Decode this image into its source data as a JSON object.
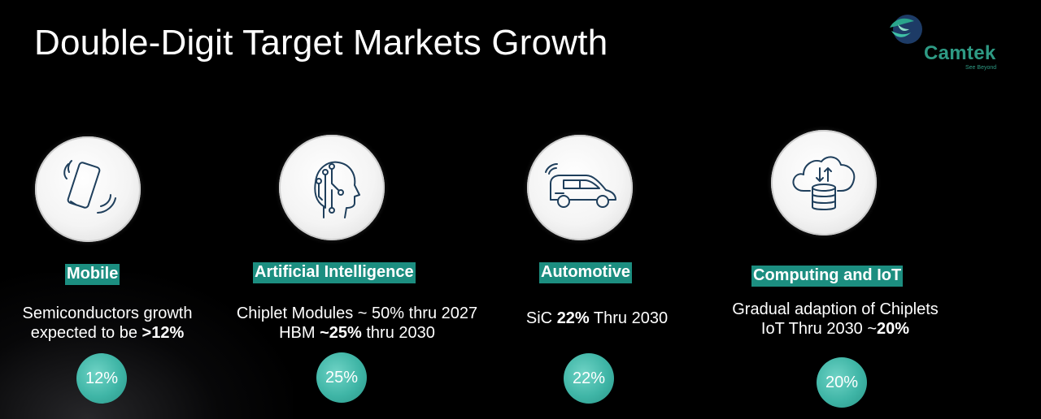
{
  "title": "Double-Digit Target Markets Growth",
  "logo": {
    "name": "Camtek",
    "tagline": "See Beyond"
  },
  "colors": {
    "accent": "#1c8e80",
    "icon_stroke": "#1f3f5c",
    "bubble": "#3fb5a6"
  },
  "markets": [
    {
      "icon": "smartphone-icon",
      "label": "Mobile",
      "line1_pre": "Semiconductors growth",
      "line2_pre": "expected to be ",
      "line2_bold": ">12%",
      "growth": "12%"
    },
    {
      "icon": "ai-head-icon",
      "label": "Artificial Intelligence",
      "line1_pre": "Chiplet Modules ~ 50% thru 2027",
      "line2_pre": "HBM ",
      "line2_bold": "~25%",
      "line2_post": " thru 2030",
      "growth": "25%"
    },
    {
      "icon": "car-icon",
      "label": "Automotive",
      "line1_pre": "SiC ",
      "line1_bold": "22%",
      "line1_post": " Thru 2030",
      "growth": "22%"
    },
    {
      "icon": "cloud-database-icon",
      "label": "Computing and IoT",
      "line1_pre": "Gradual adaption of Chiplets",
      "line2_pre": "IoT Thru 2030 ~",
      "line2_bold": "20%",
      "growth": "20%"
    }
  ]
}
